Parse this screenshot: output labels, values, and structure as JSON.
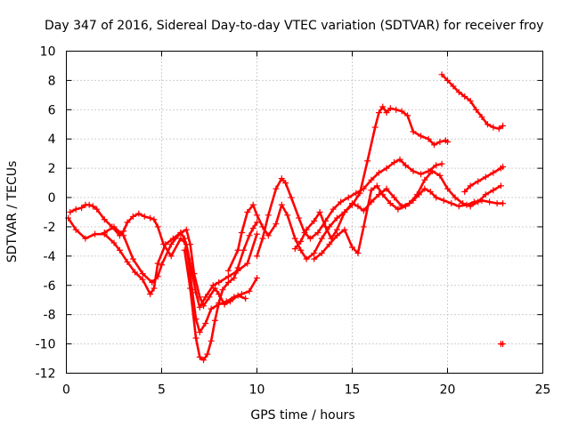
{
  "chart_data": {
    "type": "scatter",
    "title": "Day 347 of 2016, Sidereal Day-to-day VTEC variation (SDTVAR) for receiver froy",
    "xlabel": "GPS time / hours",
    "ylabel": "SDTVAR / TECUs",
    "xlim": [
      0,
      25
    ],
    "ylim": [
      -12,
      10
    ],
    "xticks": [
      0,
      5,
      10,
      15,
      20,
      25
    ],
    "yticks": [
      -12,
      -10,
      -8,
      -6,
      -4,
      -2,
      0,
      2,
      4,
      6,
      8,
      10
    ],
    "grid": true,
    "marker": "+",
    "color": "#ff0000",
    "series": [
      {
        "x": [
          0.2,
          0.5,
          0.8,
          1.0,
          1.2,
          1.4,
          1.6,
          2.0,
          2.4,
          2.8,
          3.0,
          3.2,
          3.5,
          3.8,
          4.1,
          4.4,
          4.6,
          4.8,
          5.1,
          5.5,
          6.0,
          6.3,
          6.5,
          6.8,
          7.0,
          7.3,
          7.7,
          8.0,
          8.5,
          9.0,
          9.5,
          10.0
        ],
        "y": [
          -1.0,
          -0.8,
          -0.7,
          -0.5,
          -0.5,
          -0.6,
          -0.8,
          -1.5,
          -2.0,
          -2.6,
          -2.3,
          -1.7,
          -1.3,
          -1.1,
          -1.3,
          -1.4,
          -1.5,
          -2.0,
          -3.2,
          -4.0,
          -2.8,
          -3.2,
          -4.5,
          -6.5,
          -7.5,
          -6.8,
          -6.0,
          -5.8,
          -5.4,
          -5.0,
          -4.5,
          -2.5
        ]
      },
      {
        "x": [
          0.1,
          0.5,
          1.0,
          1.5,
          2.0,
          2.5,
          2.8,
          3.2,
          3.6,
          4.0,
          4.4,
          4.6,
          4.8,
          5.2,
          5.6,
          6.0,
          6.2,
          6.4,
          6.6,
          6.8,
          7.0,
          7.3,
          7.6,
          8.0,
          8.4,
          8.8,
          9.2,
          9.6,
          10.0
        ],
        "y": [
          -1.4,
          -2.2,
          -2.8,
          -2.5,
          -2.5,
          -3.1,
          -3.6,
          -4.4,
          -5.1,
          -5.6,
          -6.6,
          -6.2,
          -4.5,
          -3.2,
          -2.8,
          -2.4,
          -2.8,
          -4.2,
          -6.3,
          -8.3,
          -9.2,
          -8.6,
          -7.6,
          -7.3,
          -7.1,
          -6.8,
          -6.6,
          -6.4,
          -5.5
        ]
      },
      {
        "x": [
          2.0,
          2.5,
          3.0,
          3.5,
          4.0,
          4.5,
          4.8,
          5.0,
          5.5,
          6.0,
          6.3,
          6.5,
          6.7,
          7.0,
          7.2,
          7.5,
          7.8,
          8.0,
          8.3,
          8.6,
          9.0,
          9.4
        ],
        "y": [
          -2.4,
          -2.0,
          -2.6,
          -4.2,
          -5.2,
          -5.8,
          -5.4,
          -4.6,
          -3.2,
          -2.4,
          -2.2,
          -3.2,
          -5.2,
          -6.8,
          -7.4,
          -6.8,
          -6.2,
          -6.6,
          -7.3,
          -7.1,
          -6.7,
          -6.9
        ]
      },
      {
        "x": [
          6.2,
          6.5,
          6.8,
          7.0,
          7.2,
          7.4,
          7.6,
          7.8,
          8.0,
          8.2,
          8.5,
          8.8,
          9.0,
          9.3,
          9.6,
          9.8,
          10.0
        ],
        "y": [
          -3.6,
          -6.2,
          -9.6,
          -10.9,
          -11.1,
          -10.7,
          -9.8,
          -8.4,
          -7.2,
          -6.3,
          -5.8,
          -5.5,
          -4.8,
          -3.6,
          -2.6,
          -2.1,
          -1.7
        ]
      },
      {
        "x": [
          8.5,
          9.0,
          9.2,
          9.5,
          9.8,
          10.0,
          10.3,
          10.6,
          11.0,
          11.3,
          11.6,
          12.0,
          12.3,
          12.6,
          13.0,
          13.4,
          13.8,
          14.2,
          14.6,
          15.0,
          15.4,
          15.8,
          16.2,
          16.4,
          16.6,
          16.8,
          17.0,
          17.3,
          17.6,
          17.9,
          18.2,
          18.6,
          19.0,
          19.3,
          19.6,
          19.9,
          20.0
        ],
        "y": [
          -5.0,
          -3.6,
          -2.4,
          -1.0,
          -0.5,
          -1.2,
          -2.0,
          -2.6,
          -1.8,
          -0.5,
          -1.2,
          -2.8,
          -3.6,
          -4.2,
          -3.8,
          -2.8,
          -2.0,
          -1.4,
          -1.0,
          -0.5,
          0.3,
          2.5,
          4.8,
          5.8,
          6.2,
          5.8,
          6.1,
          6.0,
          5.9,
          5.6,
          4.5,
          4.2,
          4.0,
          3.6,
          3.8,
          3.9,
          3.8
        ]
      },
      {
        "x": [
          10.0,
          10.3,
          10.6,
          11.0,
          11.3,
          11.5,
          11.8,
          12.2,
          12.5,
          12.8,
          13.2,
          13.6,
          14.0,
          14.4,
          14.8,
          15.2,
          15.6,
          16.0,
          16.4,
          16.8,
          17.2,
          17.5,
          17.8,
          18.2,
          18.6,
          19.0,
          19.4,
          19.7
        ],
        "y": [
          -4.0,
          -2.8,
          -1.2,
          0.6,
          1.3,
          1.0,
          0.0,
          -1.4,
          -2.4,
          -2.8,
          -2.4,
          -1.6,
          -0.8,
          -0.3,
          0.0,
          0.3,
          0.6,
          1.2,
          1.7,
          2.0,
          2.4,
          2.6,
          2.2,
          1.8,
          1.6,
          1.8,
          2.2,
          2.3
        ]
      },
      {
        "x": [
          12.0,
          12.3,
          12.6,
          13.0,
          13.3,
          13.6,
          13.9,
          14.2,
          14.6,
          15.0,
          15.3,
          15.6,
          16.0,
          16.4,
          16.8,
          17.2,
          17.6,
          18.0,
          18.4,
          18.8,
          19.2,
          19.6,
          20.0,
          20.4,
          20.8,
          21.2,
          21.6,
          22.0,
          22.4,
          22.8
        ],
        "y": [
          -3.5,
          -3.0,
          -2.2,
          -1.6,
          -1.0,
          -2.0,
          -2.8,
          -2.2,
          -1.0,
          -0.4,
          -0.6,
          -0.9,
          -0.3,
          0.2,
          0.6,
          0.0,
          -0.6,
          -0.4,
          0.2,
          1.2,
          1.8,
          1.5,
          0.6,
          0.0,
          -0.4,
          -0.6,
          -0.3,
          0.2,
          0.5,
          0.8
        ]
      },
      {
        "x": [
          13.0,
          13.4,
          13.8,
          14.2,
          14.6,
          15.0,
          15.3,
          15.6,
          16.0,
          16.3,
          16.6,
          17.0,
          17.4,
          17.8,
          18.2,
          18.5,
          18.8,
          19.1,
          19.4,
          19.8,
          20.2,
          20.6,
          21.0,
          21.4,
          21.8,
          22.2,
          22.6,
          22.9
        ],
        "y": [
          -4.2,
          -3.8,
          -3.2,
          -2.6,
          -2.2,
          -3.4,
          -3.8,
          -2.0,
          0.5,
          0.8,
          0.2,
          -0.4,
          -0.8,
          -0.6,
          -0.2,
          0.2,
          0.6,
          0.4,
          0.0,
          -0.2,
          -0.4,
          -0.6,
          -0.5,
          -0.3,
          -0.2,
          -0.3,
          -0.4,
          -0.4
        ]
      },
      {
        "x": [
          19.7,
          20.0,
          20.3,
          20.6,
          20.9,
          21.2,
          21.5,
          21.8,
          22.1,
          22.4,
          22.7,
          22.9
        ],
        "y": [
          8.4,
          8.0,
          7.6,
          7.2,
          6.9,
          6.6,
          6.0,
          5.5,
          5.0,
          4.8,
          4.7,
          4.9
        ]
      },
      {
        "x": [
          20.9,
          21.2,
          21.6,
          22.0,
          22.4,
          22.8,
          22.9
        ],
        "y": [
          0.4,
          0.8,
          1.1,
          1.4,
          1.7,
          2.0,
          2.1
        ]
      },
      {
        "x": [
          22.8,
          22.9
        ],
        "y": [
          -10.0,
          -10.0
        ]
      }
    ]
  }
}
